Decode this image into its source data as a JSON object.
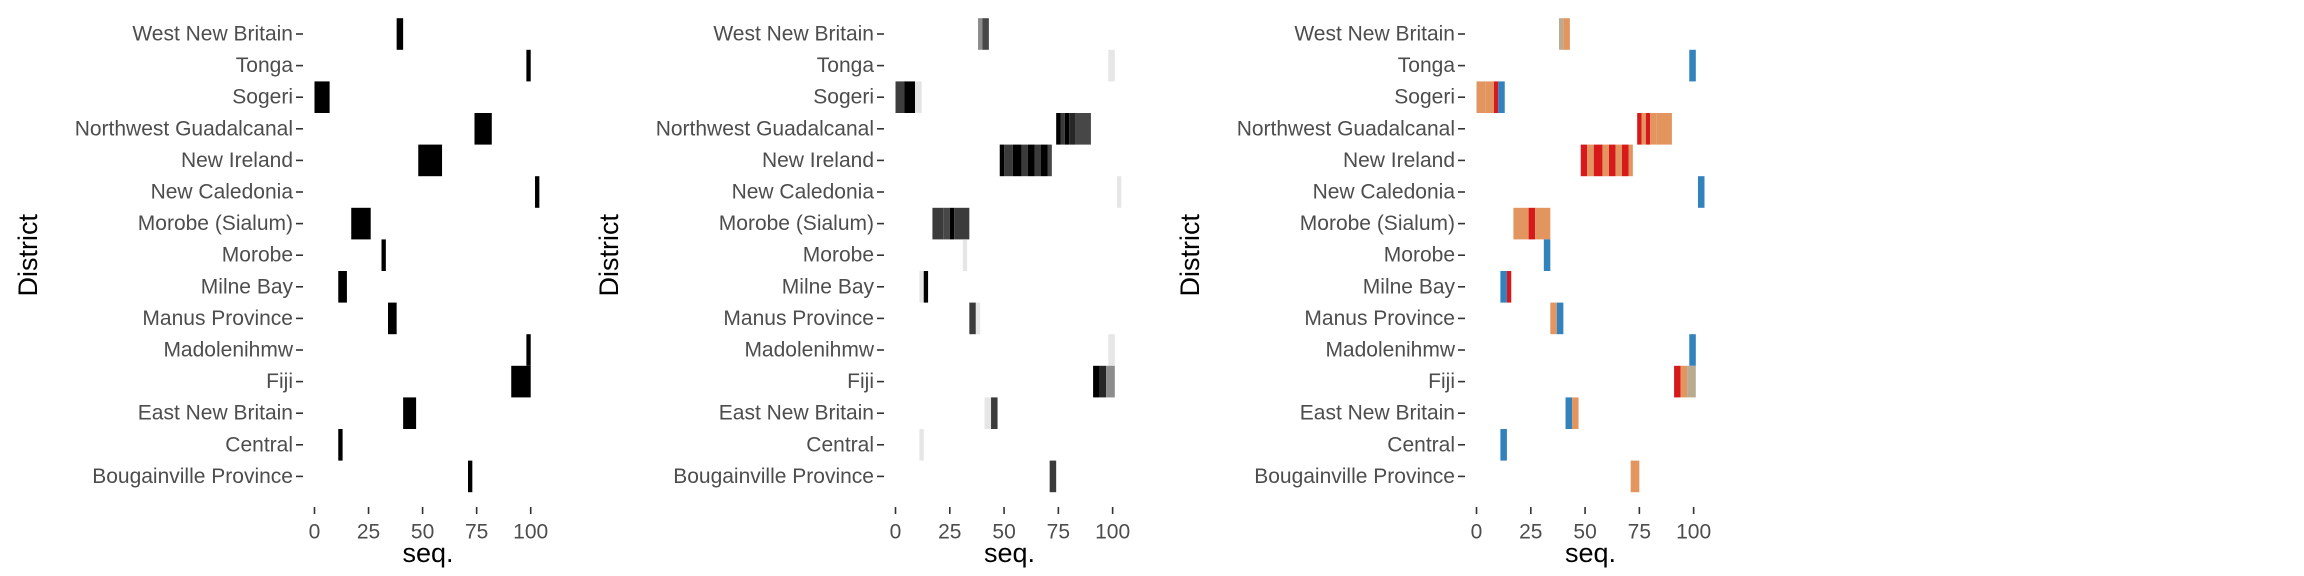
{
  "chart_data": [
    {
      "type": "heatmap",
      "panel": "black",
      "xlabel": "seq.",
      "ylabel": "District",
      "xlim": [
        -3,
        108
      ],
      "x_ticks": [
        0,
        25,
        50,
        75,
        100
      ],
      "districts": [
        "West New Britain",
        "Tonga",
        "Sogeri",
        "Northwest Guadalcanal",
        "New Ireland",
        "New Caledonia",
        "Morobe (Sialum)",
        "Morobe",
        "Milne Bay",
        "Manus Province",
        "Madolenihmw",
        "Fiji",
        "East New Britain",
        "Central",
        "Bougainville Province"
      ],
      "segments": [
        {
          "district": "West New Britain",
          "start": 38,
          "end": 41,
          "color": "#000000"
        },
        {
          "district": "Tonga",
          "start": 98,
          "end": 100,
          "color": "#000000"
        },
        {
          "district": "Sogeri",
          "start": 0,
          "end": 7,
          "color": "#000000"
        },
        {
          "district": "Northwest Guadalcanal",
          "start": 74,
          "end": 82,
          "color": "#000000"
        },
        {
          "district": "New Ireland",
          "start": 48,
          "end": 59,
          "color": "#000000"
        },
        {
          "district": "New Caledonia",
          "start": 102,
          "end": 104,
          "color": "#000000"
        },
        {
          "district": "Morobe (Sialum)",
          "start": 17,
          "end": 26,
          "color": "#000000"
        },
        {
          "district": "Morobe",
          "start": 31,
          "end": 33,
          "color": "#000000"
        },
        {
          "district": "Milne Bay",
          "start": 11,
          "end": 15,
          "color": "#000000"
        },
        {
          "district": "Manus Province",
          "start": 34,
          "end": 38,
          "color": "#000000"
        },
        {
          "district": "Madolenihmw",
          "start": 98,
          "end": 100,
          "color": "#000000"
        },
        {
          "district": "Fiji",
          "start": 91,
          "end": 100,
          "color": "#000000"
        },
        {
          "district": "East New Britain",
          "start": 41,
          "end": 47,
          "color": "#000000"
        },
        {
          "district": "Central",
          "start": 11,
          "end": 13,
          "color": "#000000"
        },
        {
          "district": "Bougainville Province",
          "start": 71,
          "end": 73,
          "color": "#000000"
        }
      ]
    },
    {
      "type": "heatmap",
      "panel": "grey",
      "xlabel": "seq.",
      "ylabel": "District",
      "xlim": [
        -3,
        108
      ],
      "x_ticks": [
        0,
        25,
        50,
        75,
        100
      ],
      "districts": [
        "West New Britain",
        "Tonga",
        "Sogeri",
        "Northwest Guadalcanal",
        "New Ireland",
        "New Caledonia",
        "Morobe (Sialum)",
        "Morobe",
        "Milne Bay",
        "Manus Province",
        "Madolenihmw",
        "Fiji",
        "East New Britain",
        "Central",
        "Bougainville Province"
      ],
      "segments": [
        {
          "district": "West New Britain",
          "start": 38,
          "end": 40,
          "color": "#8c8c8c"
        },
        {
          "district": "West New Britain",
          "start": 40,
          "end": 43,
          "color": "#474747"
        },
        {
          "district": "Tonga",
          "start": 98,
          "end": 101,
          "color": "#e6e6e6"
        },
        {
          "district": "Sogeri",
          "start": 0,
          "end": 4,
          "color": "#3d3d3d"
        },
        {
          "district": "Sogeri",
          "start": 4,
          "end": 9,
          "color": "#000000"
        },
        {
          "district": "Sogeri",
          "start": 9,
          "end": 12,
          "color": "#e3e3e3"
        },
        {
          "district": "Northwest Guadalcanal",
          "start": 74,
          "end": 76,
          "color": "#000000"
        },
        {
          "district": "Northwest Guadalcanal",
          "start": 76,
          "end": 78,
          "color": "#3b3b3b"
        },
        {
          "district": "Northwest Guadalcanal",
          "start": 78,
          "end": 80,
          "color": "#000000"
        },
        {
          "district": "Northwest Guadalcanal",
          "start": 80,
          "end": 83,
          "color": "#262626"
        },
        {
          "district": "Northwest Guadalcanal",
          "start": 83,
          "end": 90,
          "color": "#474747"
        },
        {
          "district": "New Ireland",
          "start": 48,
          "end": 50,
          "color": "#000000"
        },
        {
          "district": "New Ireland",
          "start": 50,
          "end": 54,
          "color": "#3b3b3b"
        },
        {
          "district": "New Ireland",
          "start": 54,
          "end": 58,
          "color": "#000000"
        },
        {
          "district": "New Ireland",
          "start": 58,
          "end": 61,
          "color": "#3b3b3b"
        },
        {
          "district": "New Ireland",
          "start": 61,
          "end": 64,
          "color": "#000000"
        },
        {
          "district": "New Ireland",
          "start": 64,
          "end": 67,
          "color": "#3b3b3b"
        },
        {
          "district": "New Ireland",
          "start": 67,
          "end": 70,
          "color": "#000000"
        },
        {
          "district": "New Ireland",
          "start": 70,
          "end": 72,
          "color": "#474747"
        },
        {
          "district": "New Caledonia",
          "start": 102,
          "end": 104,
          "color": "#e6e6e6"
        },
        {
          "district": "Morobe (Sialum)",
          "start": 17,
          "end": 22,
          "color": "#3b3b3b"
        },
        {
          "district": "Morobe (Sialum)",
          "start": 22,
          "end": 25,
          "color": "#474747"
        },
        {
          "district": "Morobe (Sialum)",
          "start": 25,
          "end": 27,
          "color": "#000000"
        },
        {
          "district": "Morobe (Sialum)",
          "start": 27,
          "end": 34,
          "color": "#3b3b3b"
        },
        {
          "district": "Morobe",
          "start": 31,
          "end": 33,
          "color": "#e6e6e6"
        },
        {
          "district": "Milne Bay",
          "start": 11,
          "end": 13,
          "color": "#e6e6e6"
        },
        {
          "district": "Milne Bay",
          "start": 13,
          "end": 15,
          "color": "#000000"
        },
        {
          "district": "Manus Province",
          "start": 34,
          "end": 37,
          "color": "#3b3b3b"
        },
        {
          "district": "Manus Province",
          "start": 37,
          "end": 39,
          "color": "#e6e6e6"
        },
        {
          "district": "Madolenihmw",
          "start": 98,
          "end": 101,
          "color": "#e6e6e6"
        },
        {
          "district": "Fiji",
          "start": 91,
          "end": 94,
          "color": "#000000"
        },
        {
          "district": "Fiji",
          "start": 94,
          "end": 97,
          "color": "#262626"
        },
        {
          "district": "Fiji",
          "start": 97,
          "end": 101,
          "color": "#8c8c8c"
        },
        {
          "district": "East New Britain",
          "start": 41,
          "end": 44,
          "color": "#e6e6e6"
        },
        {
          "district": "East New Britain",
          "start": 44,
          "end": 47,
          "color": "#3b3b3b"
        },
        {
          "district": "Central",
          "start": 11,
          "end": 13,
          "color": "#e6e6e6"
        },
        {
          "district": "Bougainville Province",
          "start": 71,
          "end": 74,
          "color": "#3b3b3b"
        }
      ]
    },
    {
      "type": "heatmap",
      "panel": "color",
      "xlabel": "seq.",
      "ylabel": "District",
      "xlim": [
        -3,
        108
      ],
      "x_ticks": [
        0,
        25,
        50,
        75,
        100
      ],
      "districts": [
        "West New Britain",
        "Tonga",
        "Sogeri",
        "Northwest Guadalcanal",
        "New Ireland",
        "New Caledonia",
        "Morobe (Sialum)",
        "Morobe",
        "Milne Bay",
        "Manus Province",
        "Madolenihmw",
        "Fiji",
        "East New Britain",
        "Central",
        "Bougainville Province"
      ],
      "segments": [
        {
          "district": "West New Britain",
          "start": 38,
          "end": 40,
          "color": "#b9ab90"
        },
        {
          "district": "West New Britain",
          "start": 40,
          "end": 43,
          "color": "#e3955f"
        },
        {
          "district": "Tonga",
          "start": 98,
          "end": 101,
          "color": "#3182bd"
        },
        {
          "district": "Sogeri",
          "start": 0,
          "end": 4,
          "color": "#e3955f"
        },
        {
          "district": "Sogeri",
          "start": 4,
          "end": 8,
          "color": "#e3955f"
        },
        {
          "district": "Sogeri",
          "start": 8,
          "end": 10,
          "color": "#d7191c"
        },
        {
          "district": "Sogeri",
          "start": 10,
          "end": 13,
          "color": "#3182bd"
        },
        {
          "district": "Northwest Guadalcanal",
          "start": 74,
          "end": 76,
          "color": "#d7191c"
        },
        {
          "district": "Northwest Guadalcanal",
          "start": 76,
          "end": 78,
          "color": "#e3955f"
        },
        {
          "district": "Northwest Guadalcanal",
          "start": 78,
          "end": 80,
          "color": "#d7191c"
        },
        {
          "district": "Northwest Guadalcanal",
          "start": 80,
          "end": 83,
          "color": "#e3955f"
        },
        {
          "district": "Northwest Guadalcanal",
          "start": 83,
          "end": 90,
          "color": "#e3955f"
        },
        {
          "district": "New Ireland",
          "start": 48,
          "end": 51,
          "color": "#d7191c"
        },
        {
          "district": "New Ireland",
          "start": 51,
          "end": 54,
          "color": "#e3955f"
        },
        {
          "district": "New Ireland",
          "start": 54,
          "end": 58,
          "color": "#d7191c"
        },
        {
          "district": "New Ireland",
          "start": 58,
          "end": 61,
          "color": "#e3955f"
        },
        {
          "district": "New Ireland",
          "start": 61,
          "end": 64,
          "color": "#d7191c"
        },
        {
          "district": "New Ireland",
          "start": 64,
          "end": 67,
          "color": "#e3955f"
        },
        {
          "district": "New Ireland",
          "start": 67,
          "end": 70,
          "color": "#d7191c"
        },
        {
          "district": "New Ireland",
          "start": 70,
          "end": 72,
          "color": "#e3955f"
        },
        {
          "district": "New Caledonia",
          "start": 102,
          "end": 105,
          "color": "#3182bd"
        },
        {
          "district": "Morobe (Sialum)",
          "start": 17,
          "end": 24,
          "color": "#e3955f"
        },
        {
          "district": "Morobe (Sialum)",
          "start": 24,
          "end": 27,
          "color": "#d7191c"
        },
        {
          "district": "Morobe (Sialum)",
          "start": 27,
          "end": 34,
          "color": "#e3955f"
        },
        {
          "district": "Morobe",
          "start": 31,
          "end": 34,
          "color": "#3182bd"
        },
        {
          "district": "Milne Bay",
          "start": 11,
          "end": 14,
          "color": "#3182bd"
        },
        {
          "district": "Milne Bay",
          "start": 14,
          "end": 16,
          "color": "#d7191c"
        },
        {
          "district": "Manus Province",
          "start": 34,
          "end": 37,
          "color": "#e3955f"
        },
        {
          "district": "Manus Province",
          "start": 37,
          "end": 40,
          "color": "#3182bd"
        },
        {
          "district": "Madolenihmw",
          "start": 98,
          "end": 101,
          "color": "#3182bd"
        },
        {
          "district": "Fiji",
          "start": 91,
          "end": 94,
          "color": "#d7191c"
        },
        {
          "district": "Fiji",
          "start": 94,
          "end": 97,
          "color": "#e3955f"
        },
        {
          "district": "Fiji",
          "start": 97,
          "end": 101,
          "color": "#b9ab90"
        },
        {
          "district": "East New Britain",
          "start": 41,
          "end": 44,
          "color": "#3182bd"
        },
        {
          "district": "East New Britain",
          "start": 44,
          "end": 47,
          "color": "#e3955f"
        },
        {
          "district": "Central",
          "start": 11,
          "end": 14,
          "color": "#3182bd"
        },
        {
          "district": "Bougainville Province",
          "start": 71,
          "end": 75,
          "color": "#e3955f"
        }
      ]
    }
  ]
}
